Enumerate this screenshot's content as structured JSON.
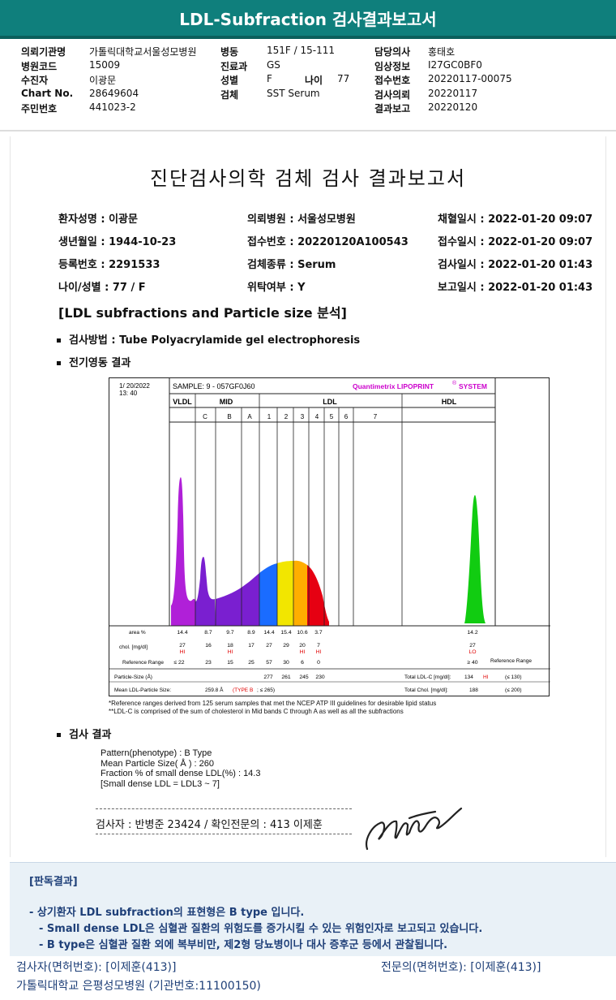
{
  "banner": "LDL-Subfraction 검사결과보고서",
  "header": {
    "col1": [
      {
        "k": "의뢰기관명",
        "v": "가톨릭대학교서울성모병원"
      },
      {
        "k": "병원코드",
        "v": "15009"
      },
      {
        "k": "수진자",
        "v": "이광문"
      },
      {
        "k": "Chart No.",
        "v": "28649604"
      },
      {
        "k": "주민번호",
        "v": "441023-2"
      }
    ],
    "col2": [
      {
        "k": "병동",
        "v": "151F / 15-111"
      },
      {
        "k": "진료과",
        "v": "GS"
      },
      {
        "k": "성별",
        "v": "F"
      },
      {
        "k": "검체",
        "v": "SST Serum"
      }
    ],
    "age_k": "나이",
    "age_v": "77",
    "col3": [
      {
        "k": "담당의사",
        "v": "홍태호"
      },
      {
        "k": "임상정보",
        "v": "I27GC0BF0"
      },
      {
        "k": "접수번호",
        "v": "20220117-00075"
      },
      {
        "k": "검사의뢰",
        "v": "20220117"
      },
      {
        "k": "결과보고",
        "v": "20220120"
      }
    ]
  },
  "report": {
    "title": "진단검사의학 검체 검사 결과보고서",
    "patient": [
      [
        "환자성명 : 이광문",
        "의뢰병원 : 서울성모병원",
        "채혈일시 : 2022-01-20 09:07"
      ],
      [
        "생년월일 : 1944-10-23",
        "접수번호 : 20220120A100543",
        "접수일시 : 2022-01-20 09:07"
      ],
      [
        "등록번호 : 2291533",
        "검체종류 : Serum",
        "검사일시 : 2022-01-20 01:43"
      ],
      [
        "나이/성별 : 77 / F",
        "위탁여부 : Y",
        "보고일시 : 2022-01-20 01:43"
      ]
    ],
    "subhead": "[LDL subfractions and Particle size 분석]",
    "method": "검사방법 : Tube Polyacrylamide gel electrophoresis",
    "electro": "전기영동 결과",
    "result_head": "검사 결과"
  },
  "chart_data": {
    "type": "area",
    "date": "1/ 20/2022",
    "time": "13: 40",
    "sample": "SAMPLE:   9 - 057GF0J60",
    "brand": "Quantimetrix LIPOPRINT",
    "brand_sup": "®",
    "brand_tail": "SYSTEM",
    "groups": [
      "VLDL",
      "MID",
      "LDL",
      "HDL"
    ],
    "mid_bands": [
      "C",
      "B",
      "A"
    ],
    "ldl_bands": [
      "1",
      "2",
      "3",
      "4",
      "5",
      "6",
      "7"
    ],
    "row_labels": {
      "area": "area %",
      "chol": "chol. [mg/dl]",
      "ref": "Reference Range",
      "ps": "Particle-Size (Å)",
      "mean": "Mean LDL-Particle Size:"
    },
    "area": [
      "14.4",
      "8.7",
      "9.7",
      "8.9",
      "14.4",
      "15.4",
      "10.6",
      "3.7",
      "14.2"
    ],
    "chol": [
      "27",
      "16",
      "18",
      "17",
      "27",
      "29",
      "20",
      "7",
      "27"
    ],
    "flags": [
      "HI",
      "",
      "HI",
      "",
      "",
      "",
      "HI",
      "HI",
      "LO"
    ],
    "ref": [
      "≤  22",
      "23",
      "15",
      "25",
      "57",
      "30",
      "6",
      "0",
      "≥ 40"
    ],
    "particle_size": [
      "277",
      "261",
      "245",
      "230"
    ],
    "mean_size": "259.8 Å",
    "mean_type": "(TYPE B",
    "mean_ref": "; ≤ 265)",
    "total_ldl": {
      "label": "Total LDL-C [mg/dl]:",
      "value": "134",
      "flag": "HI",
      "ref": "(≤ 130)"
    },
    "total_chol": {
      "label": "Total Chol. [mg/dl]:",
      "value": "188",
      "ref": "(≤ 200)"
    },
    "ref_right": "Reference Range",
    "colors": {
      "vldl": "#b020d8",
      "mid": "#7a1fd0",
      "ldl1": "#1a6cff",
      "ldl2": "#f2e600",
      "ldl3": "#ffae00",
      "ldl4": "#e60012",
      "hdl": "#11cc11",
      "flag": "#e00000",
      "brand": "#cc00cc"
    }
  },
  "footnotes": [
    "*Reference ranges derived from 125 serum samples that met the NCEP ATP III guidelines for desirable lipid status",
    "**LDL-C is comprised of the sum of cholesterol in Mid bands C through A as well as all the subfractions"
  ],
  "results": [
    "Pattern(phenotype) : B Type",
    "Mean Particle Size( Å ) : 260",
    "Fraction % of small dense LDL(%) : 14.3",
    "[Small dense LDL = LDL3 ~ 7]"
  ],
  "signoff": "검사자 : 반병준  23424  /  확인전문의 : 413  이제훈",
  "verdict": {
    "label": "[판독결과]",
    "lines": [
      "- 상기환자 LDL subfraction의 표현형은 B type 입니다.",
      "-  Small dense LDL은 심혈관 질환의 위험도를 증가시킬 수 있는 위험인자로 보고되고 있습니다.",
      "-  B type은 심혈관 질환 외에 복부비만, 제2형 당뇨병이나 대사 증후군 등에서 관찰됩니다."
    ]
  },
  "footer": {
    "examiner": "검사자(면허번호): [이제훈(413)]",
    "specialist": "전문의(면허번호): [이제훈(413)]",
    "hospital": "가톨릭대학교 은평성모병원 (기관번호:11100150)"
  }
}
